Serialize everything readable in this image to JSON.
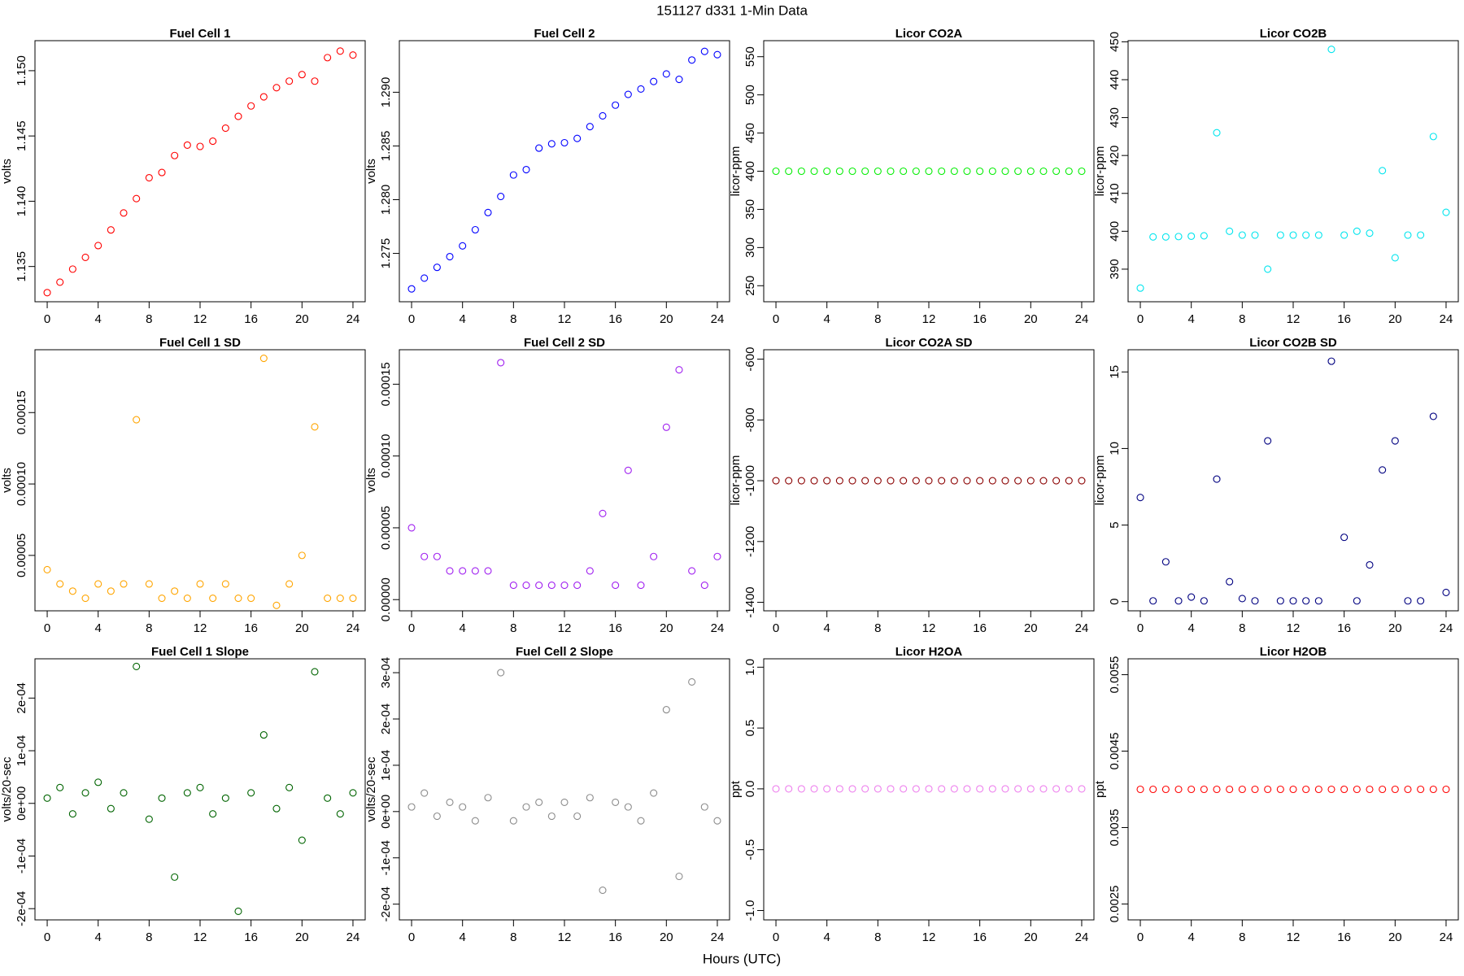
{
  "title": "151127   d331   1-Min Data",
  "xlabel": "Hours (UTC)",
  "chart_data": [
    {
      "type": "scatter",
      "title": "Fuel Cell 1",
      "ylabel": "volts",
      "color": "#ff0000",
      "x": [
        0,
        1,
        2,
        3,
        4,
        5,
        6,
        7,
        8,
        9,
        10,
        11,
        12,
        13,
        14,
        15,
        16,
        17,
        18,
        19,
        20,
        21,
        22,
        23,
        24
      ],
      "values": [
        1.133,
        1.1338,
        1.1348,
        1.1357,
        1.1366,
        1.1378,
        1.1391,
        1.1402,
        1.1418,
        1.1422,
        1.1435,
        1.1443,
        1.1442,
        1.1446,
        1.1456,
        1.1465,
        1.1473,
        1.148,
        1.1487,
        1.1492,
        1.1497,
        1.1492,
        1.151,
        1.1515,
        1.1512
      ],
      "xlim": [
        -0.96,
        24.96
      ],
      "xticks": [
        0,
        4,
        8,
        12,
        16,
        20,
        24
      ],
      "ylim": [
        1.1323,
        1.1523
      ],
      "yticks": [
        1.135,
        {
          "value": 1.14,
          "label": "1.140"
        },
        1.145,
        {
          "value": 1.15,
          "label": "1.150"
        }
      ]
    },
    {
      "type": "scatter",
      "title": "Fuel Cell 2",
      "ylabel": "volts",
      "color": "#0000ff",
      "x": [
        0,
        1,
        2,
        3,
        4,
        5,
        6,
        7,
        8,
        9,
        10,
        11,
        12,
        13,
        14,
        15,
        16,
        17,
        18,
        19,
        20,
        21,
        22,
        23,
        24
      ],
      "values": [
        1.2717,
        1.2727,
        1.2737,
        1.2747,
        1.2757,
        1.2772,
        1.2788,
        1.2803,
        1.2823,
        1.2828,
        1.2848,
        1.2852,
        1.2853,
        1.2857,
        1.2868,
        1.2878,
        1.2888,
        1.2898,
        1.2903,
        1.291,
        1.2917,
        1.2912,
        1.293,
        1.2938,
        1.2935
      ],
      "xlim": [
        -0.96,
        24.96
      ],
      "xticks": [
        0,
        4,
        8,
        12,
        16,
        20,
        24
      ],
      "ylim": [
        1.2705,
        1.2948
      ],
      "yticks": [
        1.275,
        {
          "value": 1.28,
          "label": "1.280"
        },
        1.285,
        {
          "value": 1.29,
          "label": "1.290"
        }
      ]
    },
    {
      "type": "scatter",
      "title": "Licor CO2A",
      "ylabel": "licor-ppm",
      "color": "#00ee00",
      "x": [
        0,
        1,
        2,
        3,
        4,
        5,
        6,
        7,
        8,
        9,
        10,
        11,
        12,
        13,
        14,
        15,
        16,
        17,
        18,
        19,
        20,
        21,
        22,
        23,
        24
      ],
      "values": [
        400,
        400,
        400,
        400,
        400,
        400,
        400,
        400,
        400,
        400,
        400,
        400,
        400,
        400,
        400,
        400,
        400,
        400,
        400,
        400,
        400,
        400,
        400,
        400,
        400
      ],
      "xlim": [
        -0.96,
        24.96
      ],
      "xticks": [
        0,
        4,
        8,
        12,
        16,
        20,
        24
      ],
      "ylim": [
        229,
        571
      ],
      "yticks": [
        250,
        300,
        350,
        400,
        450,
        500,
        550
      ]
    },
    {
      "type": "scatter",
      "title": "Licor CO2B",
      "ylabel": "licor-ppm",
      "color": "#00e5ee",
      "x": [
        0,
        1,
        2,
        3,
        4,
        5,
        6,
        7,
        8,
        9,
        10,
        11,
        12,
        13,
        14,
        15,
        16,
        17,
        18,
        19,
        20,
        21,
        22,
        23,
        24
      ],
      "values": [
        385,
        398.5,
        398.5,
        398.6,
        398.7,
        398.8,
        426,
        400,
        399,
        399,
        390,
        399,
        399,
        399,
        399,
        448,
        399,
        400,
        399.5,
        416,
        393,
        399,
        399,
        425,
        405
      ],
      "xlim": [
        -0.96,
        24.96
      ],
      "xticks": [
        0,
        4,
        8,
        12,
        16,
        20,
        24
      ],
      "ylim": [
        381.4,
        450.3
      ],
      "yticks": [
        390,
        400,
        410,
        420,
        430,
        440,
        450
      ]
    },
    {
      "type": "scatter",
      "title": "Fuel Cell 1 SD",
      "ylabel": "volts",
      "color": "#ffa500",
      "x": [
        0,
        1,
        2,
        3,
        4,
        5,
        6,
        7,
        8,
        9,
        10,
        11,
        12,
        13,
        14,
        15,
        16,
        17,
        18,
        19,
        20,
        21,
        22,
        23,
        24
      ],
      "values": [
        4e-05,
        3e-05,
        2.5e-05,
        2e-05,
        3e-05,
        2.5e-05,
        3e-05,
        0.000145,
        3e-05,
        2e-05,
        2.5e-05,
        2e-05,
        3e-05,
        2e-05,
        3e-05,
        2e-05,
        2e-05,
        0.000188,
        1.5e-05,
        3e-05,
        5e-05,
        0.00014,
        2e-05,
        2e-05,
        2e-05
      ],
      "xlim": [
        -0.96,
        24.96
      ],
      "xticks": [
        0,
        4,
        8,
        12,
        16,
        20,
        24
      ],
      "ylim": [
        1.12e-05,
        0.000194
      ],
      "yticks": [
        5e-05,
        {
          "value": 0.0001,
          "label": "0.00010"
        },
        0.00015
      ]
    },
    {
      "type": "scatter",
      "title": "Fuel Cell 2 SD",
      "ylabel": "volts",
      "color": "#a020f0",
      "x": [
        0,
        1,
        2,
        3,
        4,
        5,
        6,
        7,
        8,
        9,
        10,
        11,
        12,
        13,
        14,
        15,
        16,
        17,
        18,
        19,
        20,
        21,
        22,
        23,
        24
      ],
      "values": [
        5e-05,
        3e-05,
        3e-05,
        2e-05,
        2e-05,
        2e-05,
        2e-05,
        0.000165,
        1e-05,
        1e-05,
        1e-05,
        1e-05,
        1e-05,
        1e-05,
        2e-05,
        6e-05,
        1e-05,
        9e-05,
        1e-05,
        3e-05,
        0.00012,
        0.00016,
        2e-05,
        1e-05,
        3e-05
      ],
      "xlim": [
        -0.96,
        24.96
      ],
      "xticks": [
        0,
        4,
        8,
        12,
        16,
        20,
        24
      ],
      "ylim": [
        -7.8e-06,
        0.000174
      ],
      "yticks": [
        {
          "value": 0,
          "label": "0.00000"
        },
        5e-05,
        {
          "value": 0.0001,
          "label": "0.00010"
        },
        0.00015
      ]
    },
    {
      "type": "scatter",
      "title": "Licor CO2A SD",
      "ylabel": "licor-ppm",
      "color": "#8b0000",
      "x": [
        0,
        1,
        2,
        3,
        4,
        5,
        6,
        7,
        8,
        9,
        10,
        11,
        12,
        13,
        14,
        15,
        16,
        17,
        18,
        19,
        20,
        21,
        22,
        23,
        24
      ],
      "values": [
        -1000,
        -1000,
        -1000,
        -1000,
        -1000,
        -1000,
        -1000,
        -1000,
        -1000,
        -1000,
        -1000,
        -1000,
        -1000,
        -1000,
        -1000,
        -1000,
        -1000,
        -1000,
        -1000,
        -1000,
        -1000,
        -1000,
        -1000,
        -1000,
        -1000
      ],
      "xlim": [
        -0.96,
        24.96
      ],
      "xticks": [
        0,
        4,
        8,
        12,
        16,
        20,
        24
      ],
      "ylim": [
        -1428,
        -569
      ],
      "yticks": [
        -1400,
        -1200,
        -1000,
        -800,
        -600
      ]
    },
    {
      "type": "scatter",
      "title": "Licor CO2B SD",
      "ylabel": "licor-ppm",
      "color": "#000080",
      "x": [
        0,
        1,
        2,
        3,
        4,
        5,
        6,
        7,
        8,
        9,
        10,
        11,
        12,
        13,
        14,
        15,
        16,
        17,
        18,
        19,
        20,
        21,
        22,
        23,
        24
      ],
      "values": [
        6.8,
        0.05,
        2.6,
        0.05,
        0.3,
        0.05,
        8.0,
        1.3,
        0.2,
        0.05,
        10.5,
        0.05,
        0.05,
        0.05,
        0.05,
        15.7,
        4.2,
        0.05,
        2.4,
        8.6,
        10.5,
        0.05,
        0.05,
        12.1,
        0.6
      ],
      "xlim": [
        -0.96,
        24.96
      ],
      "xticks": [
        0,
        4,
        8,
        12,
        16,
        20,
        24
      ],
      "ylim": [
        -0.6,
        16.45
      ],
      "yticks": [
        0,
        5,
        10,
        15
      ]
    },
    {
      "type": "scatter",
      "title": "Fuel Cell 1 Slope",
      "ylabel": "volts/20-sec",
      "color": "#006400",
      "x": [
        0,
        1,
        2,
        3,
        4,
        5,
        6,
        7,
        8,
        9,
        10,
        11,
        12,
        13,
        14,
        15,
        16,
        17,
        18,
        19,
        20,
        21,
        22,
        23,
        24
      ],
      "values": [
        1e-05,
        3e-05,
        -2e-05,
        2e-05,
        4e-05,
        -1e-05,
        2e-05,
        0.00026,
        -3e-05,
        1e-05,
        -0.00014,
        2e-05,
        3e-05,
        -2e-05,
        1e-05,
        -0.000205,
        2e-05,
        0.00013,
        -1e-05,
        3e-05,
        -7e-05,
        0.00025,
        1e-05,
        -2e-05,
        2e-05
      ],
      "xlim": [
        -0.96,
        24.96
      ],
      "xticks": [
        0,
        4,
        8,
        12,
        16,
        20,
        24
      ],
      "ylim": [
        -0.0002213,
        0.0002746
      ],
      "yticks": [
        {
          "value": -0.0002,
          "label": "-2e-04"
        },
        {
          "value": -0.0001,
          "label": "-1e-04"
        },
        {
          "value": 0,
          "label": "0e+00"
        },
        {
          "value": 0.0001,
          "label": "1e-04"
        },
        {
          "value": 0.0002,
          "label": "2e-04"
        }
      ]
    },
    {
      "type": "scatter",
      "title": "Fuel Cell 2 Slope",
      "ylabel": "volts/20-sec",
      "color": "#8c8c8c",
      "x": [
        0,
        1,
        2,
        3,
        4,
        5,
        6,
        7,
        8,
        9,
        10,
        11,
        12,
        13,
        14,
        15,
        16,
        17,
        18,
        19,
        20,
        21,
        22,
        23,
        24
      ],
      "values": [
        1e-05,
        4e-05,
        -1e-05,
        2e-05,
        1e-05,
        -2e-05,
        3e-05,
        0.0003,
        -2e-05,
        1e-05,
        2e-05,
        -1e-05,
        2e-05,
        -1e-05,
        3e-05,
        -0.00017,
        2e-05,
        1e-05,
        -2e-05,
        4e-05,
        0.00022,
        -0.00014,
        0.00028,
        1e-05,
        -2e-05
      ],
      "xlim": [
        -0.96,
        24.96
      ],
      "xticks": [
        0,
        4,
        8,
        12,
        16,
        20,
        24
      ],
      "ylim": [
        -0.000234,
        0.00033
      ],
      "yticks": [
        {
          "value": -0.0002,
          "label": "-2e-04"
        },
        {
          "value": -0.0001,
          "label": "-1e-04"
        },
        {
          "value": 0,
          "label": "0e+00"
        },
        {
          "value": 0.0001,
          "label": "1e-04"
        },
        {
          "value": 0.0002,
          "label": "2e-04"
        },
        {
          "value": 0.0003,
          "label": "3e-04"
        }
      ]
    },
    {
      "type": "scatter",
      "title": "Licor H2OA",
      "ylabel": "ppt",
      "color": "#ee82ee",
      "x": [
        0,
        1,
        2,
        3,
        4,
        5,
        6,
        7,
        8,
        9,
        10,
        11,
        12,
        13,
        14,
        15,
        16,
        17,
        18,
        19,
        20,
        21,
        22,
        23,
        24
      ],
      "values": [
        0,
        0,
        0,
        0,
        0,
        0,
        0,
        0,
        0,
        0,
        0,
        0,
        0,
        0,
        0,
        0,
        0,
        0,
        0,
        0,
        0,
        0,
        0,
        0,
        0
      ],
      "xlim": [
        -0.96,
        24.96
      ],
      "xticks": [
        0,
        4,
        8,
        12,
        16,
        20,
        24
      ],
      "ylim": [
        -1.077,
        1.069
      ],
      "yticks": [
        {
          "value": -1,
          "label": "-1.0"
        },
        -0.5,
        {
          "value": 0,
          "label": "0.0"
        },
        0.5,
        {
          "value": 1,
          "label": "1.0"
        }
      ]
    },
    {
      "type": "scatter",
      "title": "Licor H2OB",
      "ylabel": "ppt",
      "color": "#ff0000",
      "x": [
        0,
        1,
        2,
        3,
        4,
        5,
        6,
        7,
        8,
        9,
        10,
        11,
        12,
        13,
        14,
        15,
        16,
        17,
        18,
        19,
        20,
        21,
        22,
        23,
        24
      ],
      "values": [
        0.004,
        0.004,
        0.004,
        0.004,
        0.004,
        0.004,
        0.004,
        0.004,
        0.004,
        0.004,
        0.004,
        0.004,
        0.004,
        0.004,
        0.004,
        0.004,
        0.004,
        0.004,
        0.004,
        0.004,
        0.004,
        0.004,
        0.004,
        0.004,
        0.004
      ],
      "xlim": [
        -0.96,
        24.96
      ],
      "xticks": [
        0,
        4,
        8,
        12,
        16,
        20,
        24
      ],
      "ylim": [
        0.002292,
        0.005708
      ],
      "yticks": [
        0.0025,
        0.0035,
        0.0045,
        0.0055
      ]
    }
  ]
}
